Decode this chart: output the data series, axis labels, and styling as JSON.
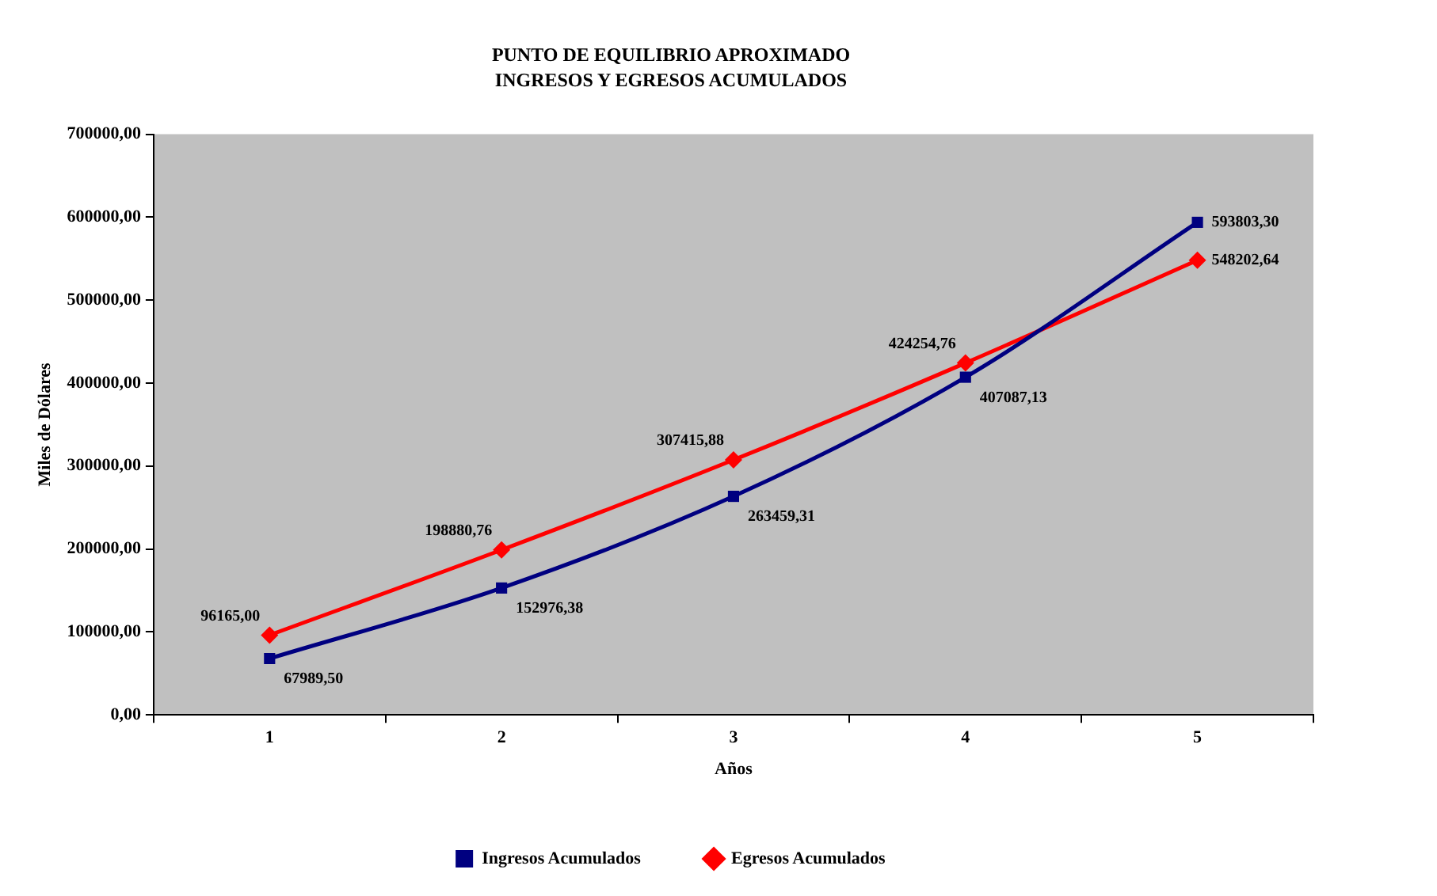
{
  "chart_data": {
    "type": "line",
    "title": "PUNTO DE EQUILIBRIO APROXIMADO",
    "subtitle": "INGRESOS Y EGRESOS ACUMULADOS",
    "xlabel": "Años",
    "ylabel": "Miles de Dólares",
    "categories": [
      "1",
      "2",
      "3",
      "4",
      "5"
    ],
    "series": [
      {
        "name": "Ingresos Acumulados",
        "color": "#000080",
        "marker": "square",
        "values": [
          67989.5,
          152976.38,
          263459.31,
          407087.13,
          593803.3
        ],
        "value_labels": [
          "67989,50",
          "152976,38",
          "263459,31",
          "407087,13",
          "593803,30"
        ]
      },
      {
        "name": "Egresos Acumulados",
        "color": "#ff0000",
        "marker": "diamond",
        "values": [
          96165.0,
          198880.76,
          307415.88,
          424254.76,
          548202.64
        ],
        "value_labels": [
          "96165,00",
          "198880,76",
          "307415,88",
          "424254,76",
          "548202,64"
        ]
      }
    ],
    "ylim": [
      0,
      700000
    ],
    "yticks": [
      {
        "value": 0,
        "label": "0,00"
      },
      {
        "value": 100000,
        "label": "100000,00"
      },
      {
        "value": 200000,
        "label": "200000,00"
      },
      {
        "value": 300000,
        "label": "300000,00"
      },
      {
        "value": 400000,
        "label": "400000,00"
      },
      {
        "value": 500000,
        "label": "500000,00"
      },
      {
        "value": 600000,
        "label": "600000,00"
      },
      {
        "value": 700000,
        "label": "700000,00"
      }
    ],
    "grid": false,
    "legend": "bottom",
    "line_style": "solid"
  }
}
